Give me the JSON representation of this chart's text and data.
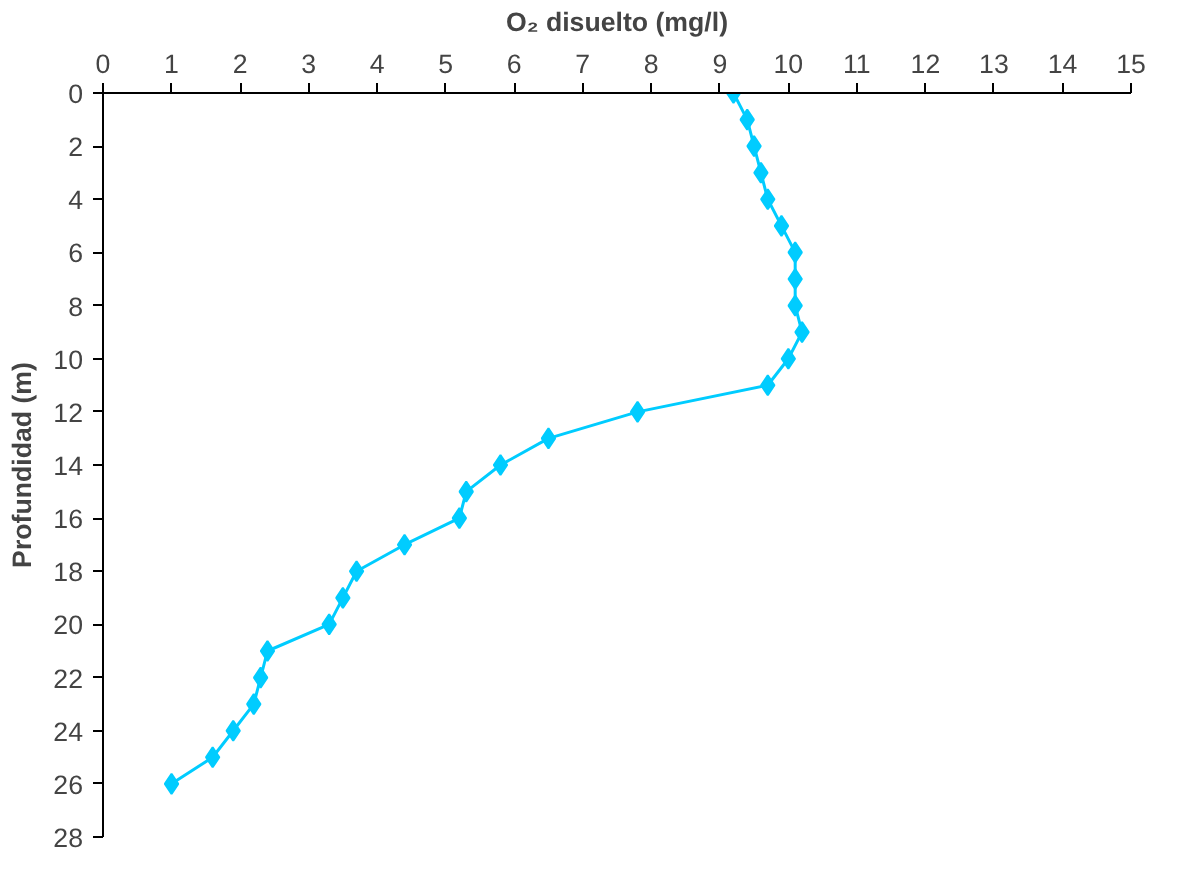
{
  "chart_data": {
    "type": "line",
    "xlabel": "O₂ disuelto (mg/l)",
    "ylabel": "Profundidad (m)",
    "x": [
      9.2,
      9.4,
      9.5,
      9.6,
      9.7,
      9.9,
      10.1,
      10.1,
      10.1,
      10.2,
      10.0,
      9.7,
      7.8,
      6.5,
      5.8,
      5.3,
      5.2,
      4.4,
      3.7,
      3.5,
      3.3,
      2.4,
      2.3,
      2.2,
      1.9,
      1.6,
      1.0
    ],
    "series": [
      {
        "color": "#00ccff",
        "values": [
          0,
          1,
          2,
          3,
          4,
          5,
          6,
          7,
          8,
          9,
          10,
          11,
          12,
          13,
          14,
          15,
          16,
          17,
          18,
          19,
          20,
          21,
          22,
          23,
          24,
          25,
          26
        ]
      }
    ],
    "xlim": [
      0,
      15
    ],
    "xticks": [
      0,
      1,
      2,
      3,
      4,
      5,
      6,
      7,
      8,
      9,
      10,
      11,
      12,
      13,
      14,
      15
    ],
    "ylim": [
      28,
      0
    ],
    "yticks": [
      0,
      2,
      4,
      6,
      8,
      10,
      12,
      14,
      16,
      18,
      20,
      22,
      24,
      26,
      28
    ],
    "grid": false,
    "marker": "diamond",
    "line_style": "solid"
  }
}
